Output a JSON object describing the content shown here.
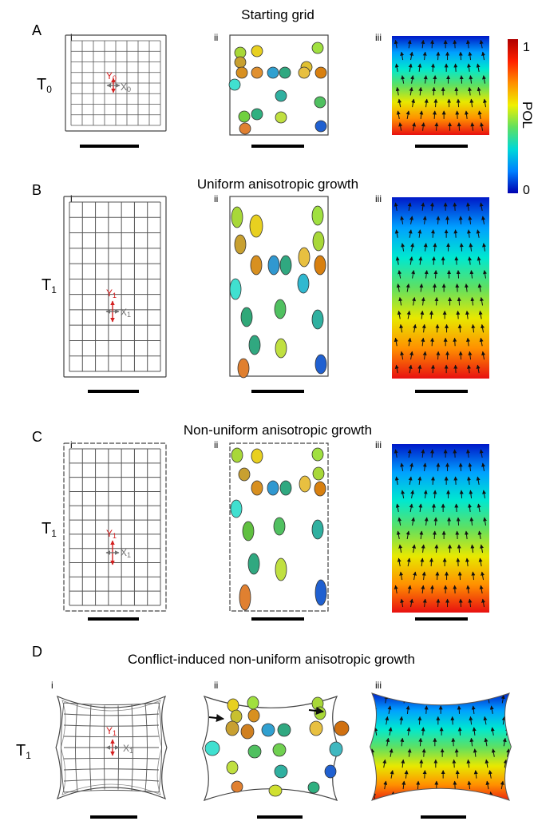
{
  "panels": [
    {
      "letter": "A",
      "title": "Starting grid",
      "time_base": "T",
      "time_sub": "0",
      "y_label": "Y",
      "y_sub": "0",
      "x_label": "X",
      "x_sub": "0"
    },
    {
      "letter": "B",
      "title": "Uniform anisotropic growth",
      "time_base": "T",
      "time_sub": "1",
      "y_label": "Y",
      "y_sub": "1",
      "x_label": "X",
      "x_sub": "1"
    },
    {
      "letter": "C",
      "title": "Non-uniform anisotropic growth",
      "time_base": "T",
      "time_sub": "1",
      "y_label": "Y",
      "y_sub": "1",
      "x_label": "X",
      "x_sub": "1"
    },
    {
      "letter": "D",
      "title": "Conflict-induced non-uniform anisotropic growth",
      "time_base": "T",
      "time_sub": "1",
      "y_label": "Y",
      "y_sub": "1",
      "x_label": "X",
      "x_sub": "1"
    }
  ],
  "subpanel_labels": [
    "i",
    "ii",
    "iii"
  ],
  "colorbar": {
    "label": "POL",
    "max_label": "1",
    "min_label": "0"
  },
  "colors": {
    "polarity_arrow": "#d42020",
    "growth_arrow": "#707070",
    "gradient": [
      "#0018c8",
      "#00a0ff",
      "#00e8d0",
      "#60e060",
      "#e8e800",
      "#ff9000",
      "#e81010"
    ],
    "colorbar": [
      "#b00000",
      "#ff2000",
      "#ff9000",
      "#f0f000",
      "#60e060",
      "#00d8d8",
      "#0080ff",
      "#0000b0"
    ]
  }
}
